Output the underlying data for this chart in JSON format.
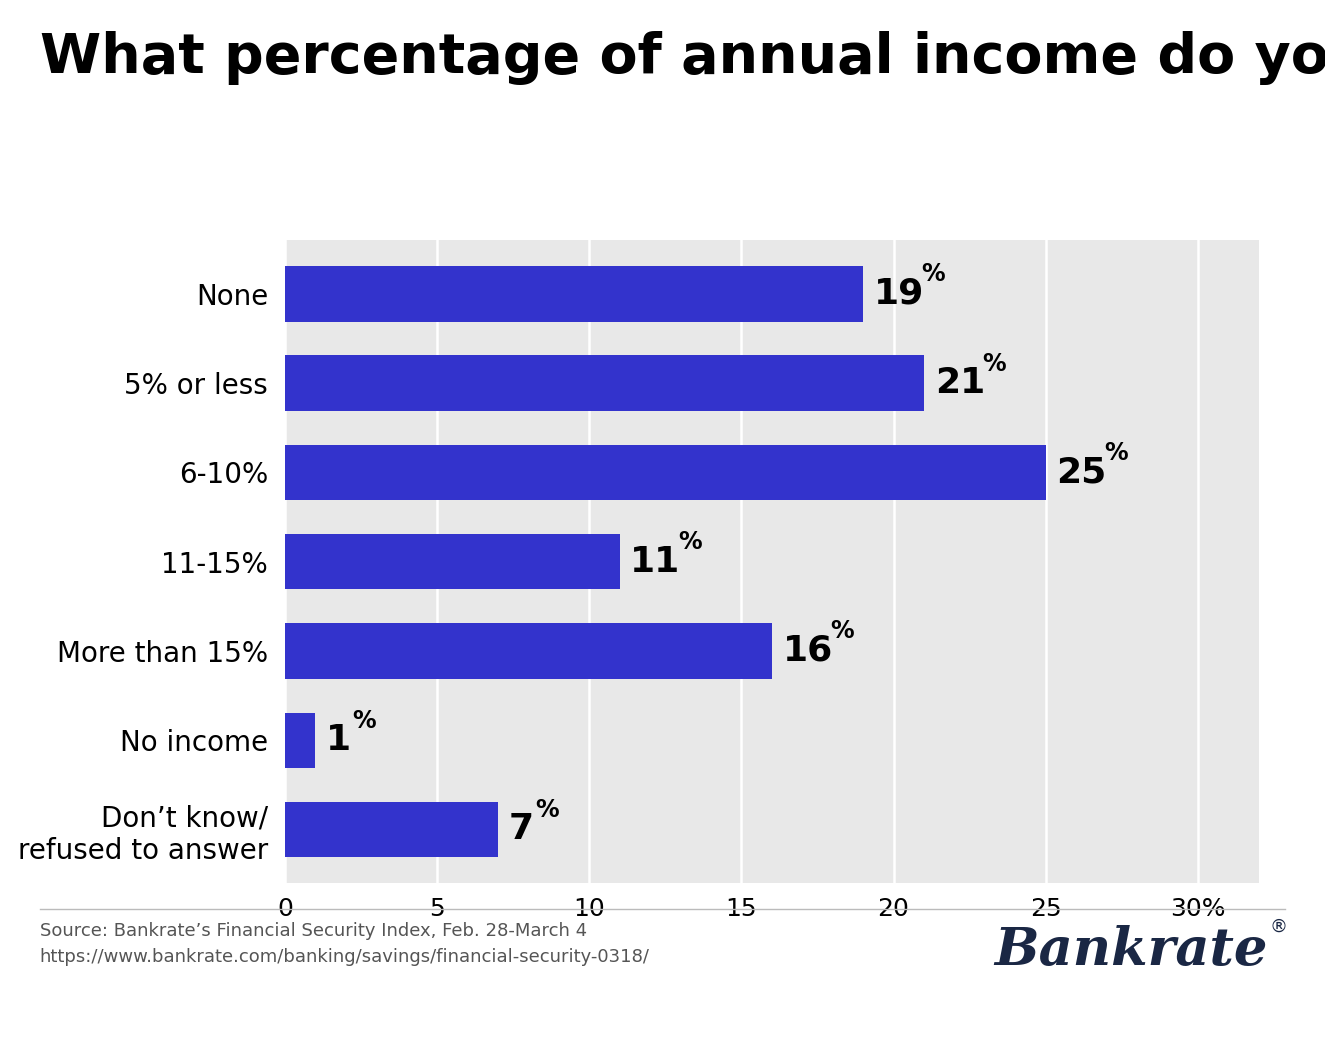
{
  "title": "What percentage of annual income do you save?",
  "categories": [
    "None",
    "5% or less",
    "6-10%",
    "11-15%",
    "More than 15%",
    "No income",
    "Don’t know/\nrefused to answer"
  ],
  "values": [
    19,
    21,
    25,
    11,
    16,
    1,
    7
  ],
  "bar_color": "#3333cc",
  "background_color": "#e8e8e8",
  "outer_background": "#ffffff",
  "xlim": [
    0,
    32
  ],
  "xticks": [
    0,
    5,
    10,
    15,
    20,
    25,
    30
  ],
  "xtick_label_last": "30%",
  "label_fontsize": 20,
  "value_fontsize": 26,
  "value_sup_fontsize": 17,
  "title_fontsize": 40,
  "tick_fontsize": 18,
  "source_text": "Source: Bankrate’s Financial Security Index, Feb. 28-March 4\nhttps://www.bankrate.com/banking/savings/financial-security-0318/",
  "source_fontsize": 13,
  "brand_text": "Bankrate",
  "brand_reg_text": "®",
  "brand_fontsize": 38,
  "brand_color": "#1a2744"
}
